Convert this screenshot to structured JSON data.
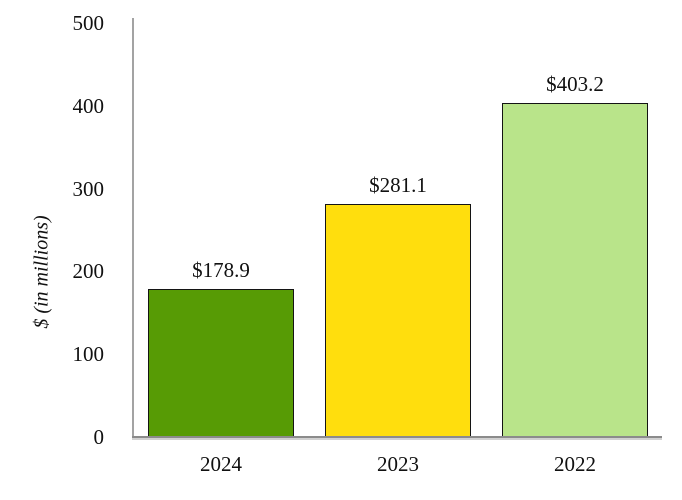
{
  "chart_data": {
    "type": "bar",
    "title": "",
    "xlabel": "",
    "ylabel": "$ (in millions)",
    "categories": [
      "2024",
      "2023",
      "2022"
    ],
    "values": [
      178.9,
      281.1,
      403.2
    ],
    "value_labels": [
      "$178.9",
      "$281.1",
      "$403.2"
    ],
    "bar_colors": [
      "#579b05",
      "#ffde0d",
      "#b9e48a"
    ],
    "bar_border_color": "#141414",
    "axis_color": "#a3a3a3",
    "yticks": [
      0,
      100,
      200,
      300,
      400,
      500
    ],
    "ylim": [
      0,
      500
    ],
    "grid": false,
    "legend": false,
    "background_color": "#ffffff"
  }
}
